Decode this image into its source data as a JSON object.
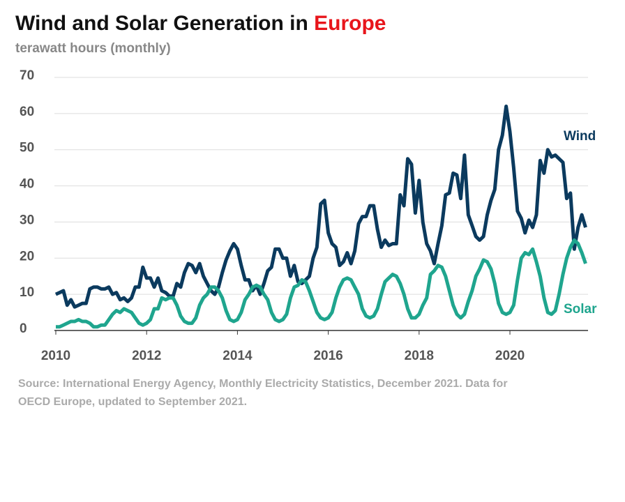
{
  "chart_data": {
    "type": "line",
    "title": "Wind and Solar Generation in",
    "title_highlight": "Europe",
    "subtitle": "terawatt hours (monthly)",
    "source": [
      "Source: International Energy Agency, Monthly Electricity Statistics, December 2021. Data for",
      "OECD Europe, updated to September 2021."
    ],
    "x": [
      2010,
      2010.083,
      2010.167,
      2010.25,
      2010.333,
      2010.417,
      2010.5,
      2010.583,
      2010.667,
      2010.75,
      2010.833,
      2010.917,
      2011,
      2011.083,
      2011.167,
      2011.25,
      2011.333,
      2011.417,
      2011.5,
      2011.583,
      2011.667,
      2011.75,
      2011.833,
      2011.917,
      2012,
      2012.083,
      2012.167,
      2012.25,
      2012.333,
      2012.417,
      2012.5,
      2012.583,
      2012.667,
      2012.75,
      2012.833,
      2012.917,
      2013,
      2013.083,
      2013.167,
      2013.25,
      2013.333,
      2013.417,
      2013.5,
      2013.583,
      2013.667,
      2013.75,
      2013.833,
      2013.917,
      2014,
      2014.083,
      2014.167,
      2014.25,
      2014.333,
      2014.417,
      2014.5,
      2014.583,
      2014.667,
      2014.75,
      2014.833,
      2014.917,
      2015,
      2015.083,
      2015.167,
      2015.25,
      2015.333,
      2015.417,
      2015.5,
      2015.583,
      2015.667,
      2015.75,
      2015.833,
      2015.917,
      2016,
      2016.083,
      2016.167,
      2016.25,
      2016.333,
      2016.417,
      2016.5,
      2016.583,
      2016.667,
      2016.75,
      2016.833,
      2016.917,
      2017,
      2017.083,
      2017.167,
      2017.25,
      2017.333,
      2017.417,
      2017.5,
      2017.583,
      2017.667,
      2017.75,
      2017.833,
      2017.917,
      2018,
      2018.083,
      2018.167,
      2018.25,
      2018.333,
      2018.417,
      2018.5,
      2018.583,
      2018.667,
      2018.75,
      2018.833,
      2018.917,
      2019,
      2019.083,
      2019.167,
      2019.25,
      2019.333,
      2019.417,
      2019.5,
      2019.583,
      2019.667,
      2019.75,
      2019.833,
      2019.917,
      2020,
      2020.083,
      2020.167,
      2020.25,
      2020.333,
      2020.417,
      2020.5,
      2020.583,
      2020.667,
      2020.75,
      2020.833,
      2020.917,
      2021,
      2021.083,
      2021.167,
      2021.25,
      2021.333,
      2021.417,
      2021.5,
      2021.583,
      2021.667
    ],
    "series": [
      {
        "name": "Wind",
        "color": "#0b3a5e",
        "values": [
          10,
          10.5,
          11,
          7,
          8.5,
          6.5,
          7,
          7.5,
          7.5,
          11.5,
          12,
          12,
          11.5,
          11.5,
          12,
          10,
          10.5,
          8.5,
          9,
          8,
          9,
          12,
          12,
          17.5,
          14.5,
          14.5,
          12,
          14.5,
          11,
          10.5,
          9.5,
          9.5,
          13,
          12,
          16,
          18.5,
          18,
          16,
          18.5,
          15,
          13,
          11,
          10,
          12,
          16,
          19.5,
          22,
          24,
          22.5,
          18,
          14,
          14,
          11,
          12.5,
          10,
          13,
          16.5,
          17.5,
          22.5,
          22.5,
          20,
          20,
          15,
          18,
          13.5,
          13,
          14,
          15,
          20,
          23,
          35,
          36,
          27,
          24,
          23,
          18,
          19,
          21.5,
          18.5,
          22,
          29.5,
          31.5,
          31.5,
          34.5,
          34.5,
          28,
          23,
          25,
          23.5,
          24,
          24,
          37.5,
          34.5,
          47.5,
          46,
          32.5,
          41.5,
          30,
          24,
          22,
          18.5,
          24,
          29,
          37.5,
          38,
          43.5,
          43,
          36.5,
          48.5,
          32,
          29,
          26,
          25,
          26,
          32,
          36,
          39,
          50,
          54,
          62,
          55,
          45,
          33,
          31,
          27,
          30.5,
          28.5,
          32,
          47,
          43.5,
          50,
          48,
          48.5,
          47.5,
          46.5,
          36.5,
          38,
          22.5,
          28.5,
          32,
          28.5
        ]
      },
      {
        "name": "Solar",
        "color": "#1fa58e",
        "values": [
          1,
          1,
          1.5,
          2,
          2.5,
          2.5,
          3,
          2.5,
          2.5,
          2,
          1,
          1,
          1.5,
          1.5,
          3,
          4.5,
          5.5,
          5,
          6,
          5.5,
          5,
          3.5,
          2,
          1.5,
          2,
          3,
          6,
          6,
          9,
          8.5,
          9,
          9,
          7,
          4,
          2.5,
          2,
          2,
          3.5,
          7,
          9,
          10,
          12,
          12,
          11,
          9,
          5.5,
          3,
          2.5,
          3,
          5,
          8.5,
          10,
          12,
          12.5,
          12,
          10,
          8.5,
          5,
          3,
          2.5,
          3,
          4.5,
          9,
          12,
          12.5,
          14,
          13.5,
          11,
          8,
          5,
          3.5,
          3,
          3.5,
          5,
          9,
          12,
          14,
          14.5,
          14,
          12,
          10,
          6,
          4,
          3.5,
          4,
          6,
          10,
          13.5,
          14.5,
          15.5,
          15,
          13,
          10,
          6,
          3.5,
          3.5,
          4.5,
          7,
          9,
          15.5,
          16.5,
          18,
          17.5,
          15,
          11,
          7,
          4.5,
          3.5,
          4.5,
          8,
          11,
          15,
          17,
          19.5,
          19,
          17,
          13,
          7.5,
          5,
          4.5,
          5,
          7,
          14,
          20,
          21.5,
          21,
          22.5,
          19,
          15,
          9,
          5,
          4.5,
          5.5,
          10,
          15.5,
          20,
          23,
          25,
          24,
          21.5,
          18.5
        ]
      }
    ],
    "xlim": [
      2010,
      2021.72
    ],
    "xticks": [
      2010,
      2012,
      2014,
      2016,
      2018,
      2020
    ],
    "ylim": [
      0,
      70
    ],
    "yticks": [
      0,
      10,
      20,
      30,
      40,
      50,
      60,
      70
    ],
    "grid": true,
    "title_highlight_color": "#e8151b"
  }
}
